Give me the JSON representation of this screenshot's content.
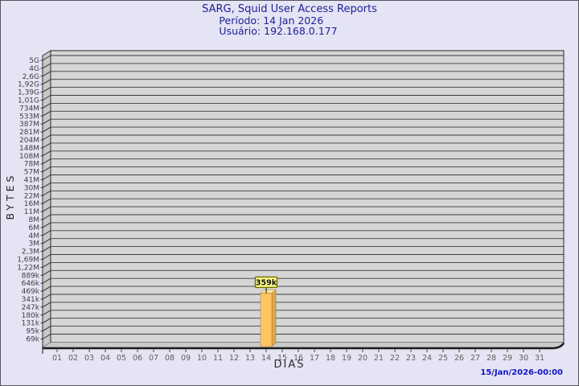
{
  "chart_data": {
    "type": "bar",
    "title": "SARG, Squid User Access Reports",
    "period": "Período: 14 Jan 2026",
    "user": "Usuário: 192.168.0.177",
    "xlabel": "DIAS",
    "ylabel": "BYTES",
    "yticks": [
      "5G",
      "4G",
      "2,6G",
      "1,92G",
      "1,39G",
      "1,01G",
      "734M",
      "533M",
      "387M",
      "281M",
      "204M",
      "148M",
      "108M",
      "78M",
      "57M",
      "41M",
      "30M",
      "22M",
      "16M",
      "11M",
      "8M",
      "6M",
      "4M",
      "3M",
      "2,3M",
      "1,69M",
      "1,22M",
      "889k",
      "646k",
      "469k",
      "341k",
      "247k",
      "180k",
      "131k",
      "95k",
      "69k"
    ],
    "categories": [
      "01",
      "02",
      "03",
      "04",
      "05",
      "06",
      "07",
      "08",
      "09",
      "10",
      "11",
      "12",
      "13",
      "14",
      "15",
      "16",
      "17",
      "18",
      "19",
      "20",
      "21",
      "22",
      "23",
      "24",
      "25",
      "26",
      "27",
      "28",
      "29",
      "30",
      "31"
    ],
    "bars": [
      {
        "category": "14",
        "value": 359000,
        "label": "359k"
      }
    ],
    "yscale": "log",
    "grid": "horizontal",
    "legend": "none",
    "colors": {
      "background": "#E4E4F4",
      "plot_face": "#D6D6D6",
      "plot_wall": "#C8C8C8",
      "grid_line": "#3c3c3c",
      "bar_front": "#FDC462",
      "bar_side": "#DFA64B",
      "bar_top": "#FFE9A6",
      "value_box_bg": "#FFFF87",
      "value_box_border": "#6F6F00",
      "title_text": "#20209A",
      "timestamp_text": "#1414C8"
    }
  },
  "footer": {
    "timestamp": "15/Jan/2026-00:00"
  }
}
